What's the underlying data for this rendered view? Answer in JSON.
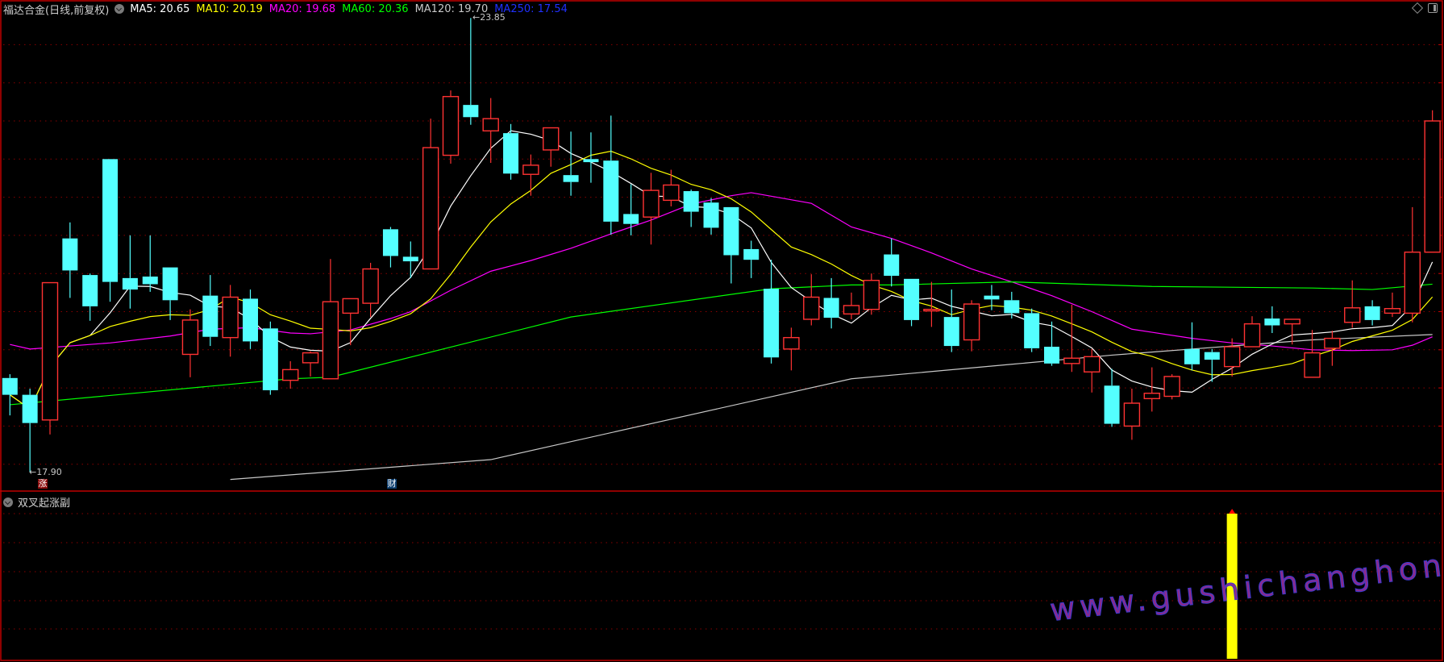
{
  "header": {
    "title": "福达合金(日线,前复权)",
    "ma_labels": [
      {
        "text": "MA5: 20.65",
        "color": "#ffffff"
      },
      {
        "text": "MA10: 20.19",
        "color": "#ffff00"
      },
      {
        "text": "MA20: 19.68",
        "color": "#ff00ff"
      },
      {
        "text": "MA60: 20.36",
        "color": "#00ff00"
      },
      {
        "text": "MA120: 19.70",
        "color": "#c8c8c8"
      },
      {
        "text": "MA250: 17.54",
        "color": "#2030ff"
      }
    ]
  },
  "sub_panel": {
    "title": "双叉起涨副"
  },
  "markers": {
    "high_label": "23.85",
    "low_label": "17.90",
    "rise_tag": "涨",
    "finance_tag": "财"
  },
  "watermark": "www.gushichanghong.com",
  "colors": {
    "up": "#ff3232",
    "down": "#54ffff",
    "grid": "#8a0000",
    "border": "#c00000",
    "signal": "#ffff00"
  },
  "chart_data": {
    "type": "candlestick",
    "ylim": [
      17.4,
      24.1
    ],
    "grid_step": 0.5,
    "candles_ohlc": [
      [
        19.13,
        19.18,
        18.64,
        18.91
      ],
      [
        18.91,
        18.99,
        17.9,
        18.54
      ],
      [
        18.58,
        20.38,
        18.39,
        20.38
      ],
      [
        20.96,
        21.17,
        20.18,
        20.54
      ],
      [
        20.48,
        20.5,
        19.88,
        20.07
      ],
      [
        22.0,
        22.0,
        20.13,
        20.39
      ],
      [
        20.44,
        21.0,
        20.04,
        20.29
      ],
      [
        20.46,
        21.0,
        20.26,
        20.36
      ],
      [
        20.58,
        20.58,
        19.89,
        20.15
      ],
      [
        19.44,
        20.03,
        19.14,
        19.89
      ],
      [
        20.21,
        20.48,
        19.55,
        19.67
      ],
      [
        19.66,
        20.35,
        19.41,
        20.19
      ],
      [
        20.17,
        20.29,
        19.51,
        19.61
      ],
      [
        19.78,
        19.87,
        18.91,
        18.97
      ],
      [
        19.1,
        19.35,
        18.99,
        19.24
      ],
      [
        19.33,
        19.48,
        19.15,
        19.46
      ],
      [
        19.12,
        20.69,
        19.12,
        20.13
      ],
      [
        19.98,
        20.17,
        19.56,
        20.17
      ],
      [
        20.11,
        20.64,
        19.93,
        20.56
      ],
      [
        21.08,
        21.11,
        20.58,
        20.73
      ],
      [
        20.72,
        20.92,
        20.44,
        20.66
      ],
      [
        20.56,
        22.53,
        20.56,
        22.15
      ],
      [
        22.05,
        22.9,
        21.94,
        22.82
      ],
      [
        22.71,
        23.85,
        22.45,
        22.55
      ],
      [
        22.37,
        22.8,
        21.95,
        22.53
      ],
      [
        22.34,
        22.46,
        21.73,
        21.81
      ],
      [
        21.8,
        22.06,
        21.52,
        21.92
      ],
      [
        22.12,
        22.41,
        21.9,
        22.41
      ],
      [
        21.79,
        22.36,
        21.52,
        21.7
      ],
      [
        22.0,
        22.35,
        21.69,
        21.96
      ],
      [
        21.98,
        22.57,
        21.01,
        21.18
      ],
      [
        21.28,
        21.67,
        21.0,
        21.15
      ],
      [
        21.24,
        21.82,
        20.88,
        21.59
      ],
      [
        21.46,
        21.86,
        21.38,
        21.66
      ],
      [
        21.58,
        21.6,
        21.11,
        21.31
      ],
      [
        21.43,
        21.49,
        21.01,
        21.1
      ],
      [
        21.37,
        21.37,
        20.37,
        20.74
      ],
      [
        20.82,
        20.93,
        20.44,
        20.68
      ],
      [
        20.3,
        20.68,
        19.32,
        19.4
      ],
      [
        19.51,
        19.79,
        19.23,
        19.66
      ],
      [
        19.9,
        20.49,
        19.82,
        20.19
      ],
      [
        20.18,
        20.44,
        19.78,
        19.92
      ],
      [
        19.97,
        20.25,
        19.9,
        20.08
      ],
      [
        20.03,
        20.5,
        19.96,
        20.41
      ],
      [
        20.75,
        20.96,
        20.33,
        20.47
      ],
      [
        20.43,
        20.43,
        19.81,
        19.89
      ],
      [
        20.01,
        20.39,
        19.8,
        20.03
      ],
      [
        19.93,
        20.29,
        19.47,
        19.55
      ],
      [
        19.63,
        20.15,
        19.48,
        20.1
      ],
      [
        20.21,
        20.35,
        20.02,
        20.16
      ],
      [
        20.15,
        20.26,
        19.91,
        19.98
      ],
      [
        19.98,
        20.04,
        19.47,
        19.52
      ],
      [
        19.54,
        19.87,
        19.29,
        19.32
      ],
      [
        19.32,
        20.09,
        19.21,
        19.39
      ],
      [
        19.21,
        19.51,
        18.94,
        19.41
      ],
      [
        19.03,
        19.25,
        18.49,
        18.53
      ],
      [
        18.5,
        18.99,
        18.32,
        18.8
      ],
      [
        18.86,
        19.27,
        18.69,
        18.93
      ],
      [
        18.89,
        19.18,
        18.85,
        19.15
      ],
      [
        19.51,
        19.86,
        19.23,
        19.31
      ],
      [
        19.47,
        19.51,
        19.08,
        19.37
      ],
      [
        19.28,
        19.65,
        19.15,
        19.54
      ],
      [
        19.54,
        19.94,
        19.54,
        19.84
      ],
      [
        19.91,
        20.07,
        19.72,
        19.82
      ],
      [
        19.84,
        19.9,
        19.57,
        19.9
      ],
      [
        19.14,
        19.76,
        19.14,
        19.46
      ],
      [
        19.52,
        19.75,
        19.29,
        19.65
      ],
      [
        19.86,
        20.41,
        19.79,
        20.05
      ],
      [
        20.07,
        20.15,
        19.82,
        19.89
      ],
      [
        19.98,
        20.25,
        19.93,
        20.04
      ],
      [
        19.98,
        21.37,
        19.86,
        20.78
      ],
      [
        20.78,
        22.64,
        20.78,
        22.5
      ]
    ],
    "computed_ma": [
      {
        "name": "MA5",
        "period": 5,
        "color": "#ffffff"
      },
      {
        "name": "MA10",
        "period": 10,
        "color": "#ffff00"
      }
    ],
    "ma_series": [
      {
        "name": "MA20",
        "color": "#ff00ff",
        "points": [
          [
            0,
            19.57
          ],
          [
            1,
            19.51
          ],
          [
            5,
            19.59
          ],
          [
            8,
            19.68
          ],
          [
            10,
            19.77
          ],
          [
            12,
            19.79
          ],
          [
            14,
            19.72
          ],
          [
            15,
            19.71
          ],
          [
            17,
            19.76
          ],
          [
            19,
            19.91
          ],
          [
            20,
            20.0
          ],
          [
            22,
            20.28
          ],
          [
            24,
            20.53
          ],
          [
            26,
            20.67
          ],
          [
            28,
            20.83
          ],
          [
            30,
            21.02
          ],
          [
            32,
            21.2
          ],
          [
            34,
            21.41
          ],
          [
            36,
            21.52
          ],
          [
            37,
            21.56
          ],
          [
            40,
            21.42
          ],
          [
            42,
            21.11
          ],
          [
            44,
            20.96
          ],
          [
            46,
            20.77
          ],
          [
            48,
            20.56
          ],
          [
            50,
            20.39
          ],
          [
            52,
            20.21
          ],
          [
            54,
            20.0
          ],
          [
            56,
            19.77
          ],
          [
            57,
            19.73
          ],
          [
            59,
            19.65
          ],
          [
            61,
            19.59
          ],
          [
            63,
            19.55
          ],
          [
            65,
            19.5
          ],
          [
            67,
            19.49
          ],
          [
            69,
            19.5
          ],
          [
            70,
            19.56
          ],
          [
            71,
            19.67
          ]
        ]
      },
      {
        "name": "MA60",
        "color": "#00ff00",
        "points": [
          [
            0,
            18.78
          ],
          [
            14,
            19.12
          ],
          [
            16,
            19.14
          ],
          [
            28,
            19.93
          ],
          [
            38,
            20.3
          ],
          [
            42,
            20.35
          ],
          [
            44,
            20.35
          ],
          [
            50,
            20.39
          ],
          [
            57,
            20.33
          ],
          [
            65,
            20.31
          ],
          [
            68,
            20.29
          ],
          [
            71,
            20.36
          ]
        ]
      },
      {
        "name": "MA120",
        "color": "#c8c8c8",
        "points": [
          [
            11,
            17.8
          ],
          [
            24,
            18.06
          ],
          [
            42,
            19.12
          ],
          [
            50,
            19.31
          ],
          [
            55,
            19.43
          ],
          [
            57,
            19.47
          ],
          [
            65,
            19.63
          ],
          [
            71,
            19.7
          ]
        ]
      }
    ],
    "high_index": 23,
    "low_index": 1,
    "sub_signal": {
      "index": 61,
      "value": 1
    }
  }
}
